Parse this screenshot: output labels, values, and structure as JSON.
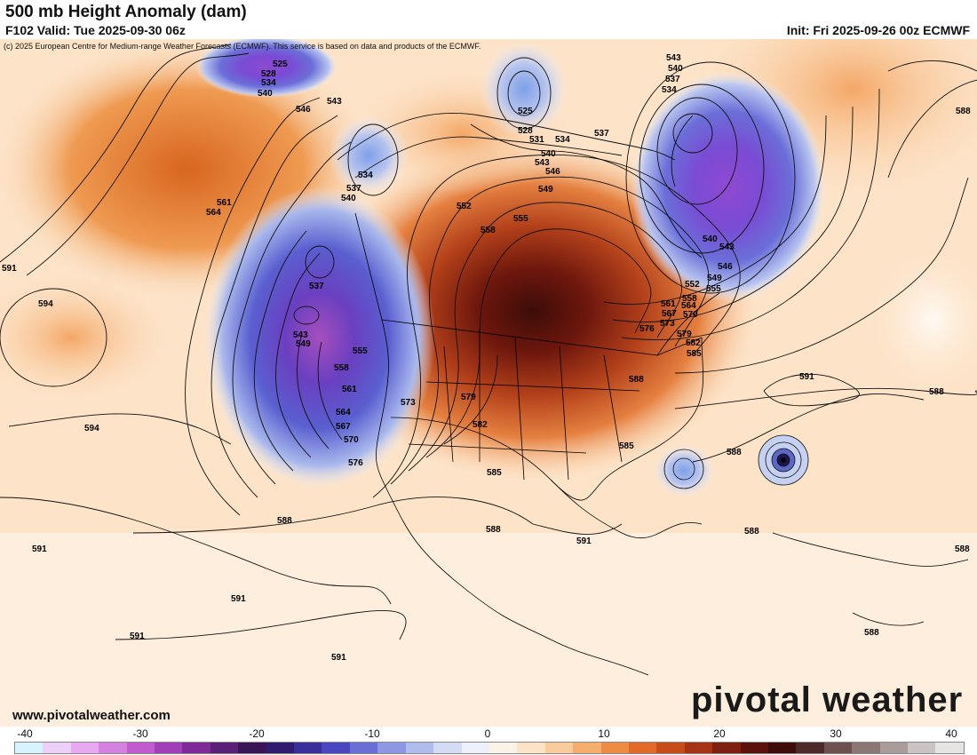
{
  "header": {
    "title": "500 mb Height Anomaly (dam)",
    "valid": "F102 Valid: Tue 2025-09-30 06z",
    "init": "Init: Fri 2025-09-26 00z ECMWF",
    "copyright": "(c) 2025 European Centre for Medium-range Weather Forecasts (ECMWF). This service is based on data and products of the ECMWF."
  },
  "footer": {
    "website": "www.pivotalweather.com",
    "brand": "pivotal weather"
  },
  "colorbar": {
    "ticks": [
      "-40",
      "-30",
      "-20",
      "-10",
      "0",
      "10",
      "20",
      "30",
      "40"
    ],
    "colors": [
      "#d7f3ff",
      "#eecff7",
      "#e7a9ef",
      "#d581e2",
      "#c05bd0",
      "#a13fb8",
      "#7e2b98",
      "#5a1f76",
      "#3a1556",
      "#2f1c6e",
      "#3a2f9a",
      "#4a46c0",
      "#6a6fd6",
      "#8d97e2",
      "#b0bcec",
      "#d4dcf5",
      "#eef1fb",
      "#fbf2e8",
      "#fce3c6",
      "#f9cc9c",
      "#f5ae6e",
      "#ee8c45",
      "#e2692a",
      "#c84c1a",
      "#a63314",
      "#7f1f10",
      "#5a120b",
      "#3d0c08",
      "#4d2a2a",
      "#6e5050",
      "#8d7676",
      "#ab9c9c",
      "#c9c3c3",
      "#e6e3e3"
    ]
  },
  "contour_labels": [
    {
      "text": "525"
    },
    {
      "text": "528"
    },
    {
      "text": "534"
    },
    {
      "text": "540"
    },
    {
      "text": "543"
    },
    {
      "text": "546"
    },
    {
      "text": "561"
    },
    {
      "text": "564"
    },
    {
      "text": "591"
    },
    {
      "text": "594"
    },
    {
      "text": "594"
    },
    {
      "text": "591"
    },
    {
      "text": "591"
    },
    {
      "text": "591"
    },
    {
      "text": "591"
    },
    {
      "text": "588"
    },
    {
      "text": "537"
    },
    {
      "text": "543"
    },
    {
      "text": "549"
    },
    {
      "text": "555"
    },
    {
      "text": "558"
    },
    {
      "text": "561"
    },
    {
      "text": "564"
    },
    {
      "text": "567"
    },
    {
      "text": "570"
    },
    {
      "text": "576"
    },
    {
      "text": "573"
    },
    {
      "text": "579"
    },
    {
      "text": "582"
    },
    {
      "text": "585"
    },
    {
      "text": "588"
    },
    {
      "text": "591"
    },
    {
      "text": "534"
    },
    {
      "text": "537"
    },
    {
      "text": "540"
    },
    {
      "text": "525"
    },
    {
      "text": "528"
    },
    {
      "text": "531"
    },
    {
      "text": "534"
    },
    {
      "text": "537"
    },
    {
      "text": "540"
    },
    {
      "text": "543"
    },
    {
      "text": "546"
    },
    {
      "text": "549"
    },
    {
      "text": "552"
    },
    {
      "text": "555"
    },
    {
      "text": "558"
    },
    {
      "text": "543"
    },
    {
      "text": "540"
    },
    {
      "text": "537"
    },
    {
      "text": "534"
    },
    {
      "text": "540"
    },
    {
      "text": "543"
    },
    {
      "text": "546"
    },
    {
      "text": "549"
    },
    {
      "text": "552"
    },
    {
      "text": "555"
    },
    {
      "text": "558"
    },
    {
      "text": "561"
    },
    {
      "text": "564"
    },
    {
      "text": "567"
    },
    {
      "text": "570"
    },
    {
      "text": "573"
    },
    {
      "text": "576"
    },
    {
      "text": "579"
    },
    {
      "text": "582"
    },
    {
      "text": "585"
    },
    {
      "text": "588"
    },
    {
      "text": "591"
    },
    {
      "text": "588"
    },
    {
      "text": "588"
    },
    {
      "text": "585"
    },
    {
      "text": "588"
    },
    {
      "text": "588"
    },
    {
      "text": "588"
    },
    {
      "text": "588"
    }
  ]
}
